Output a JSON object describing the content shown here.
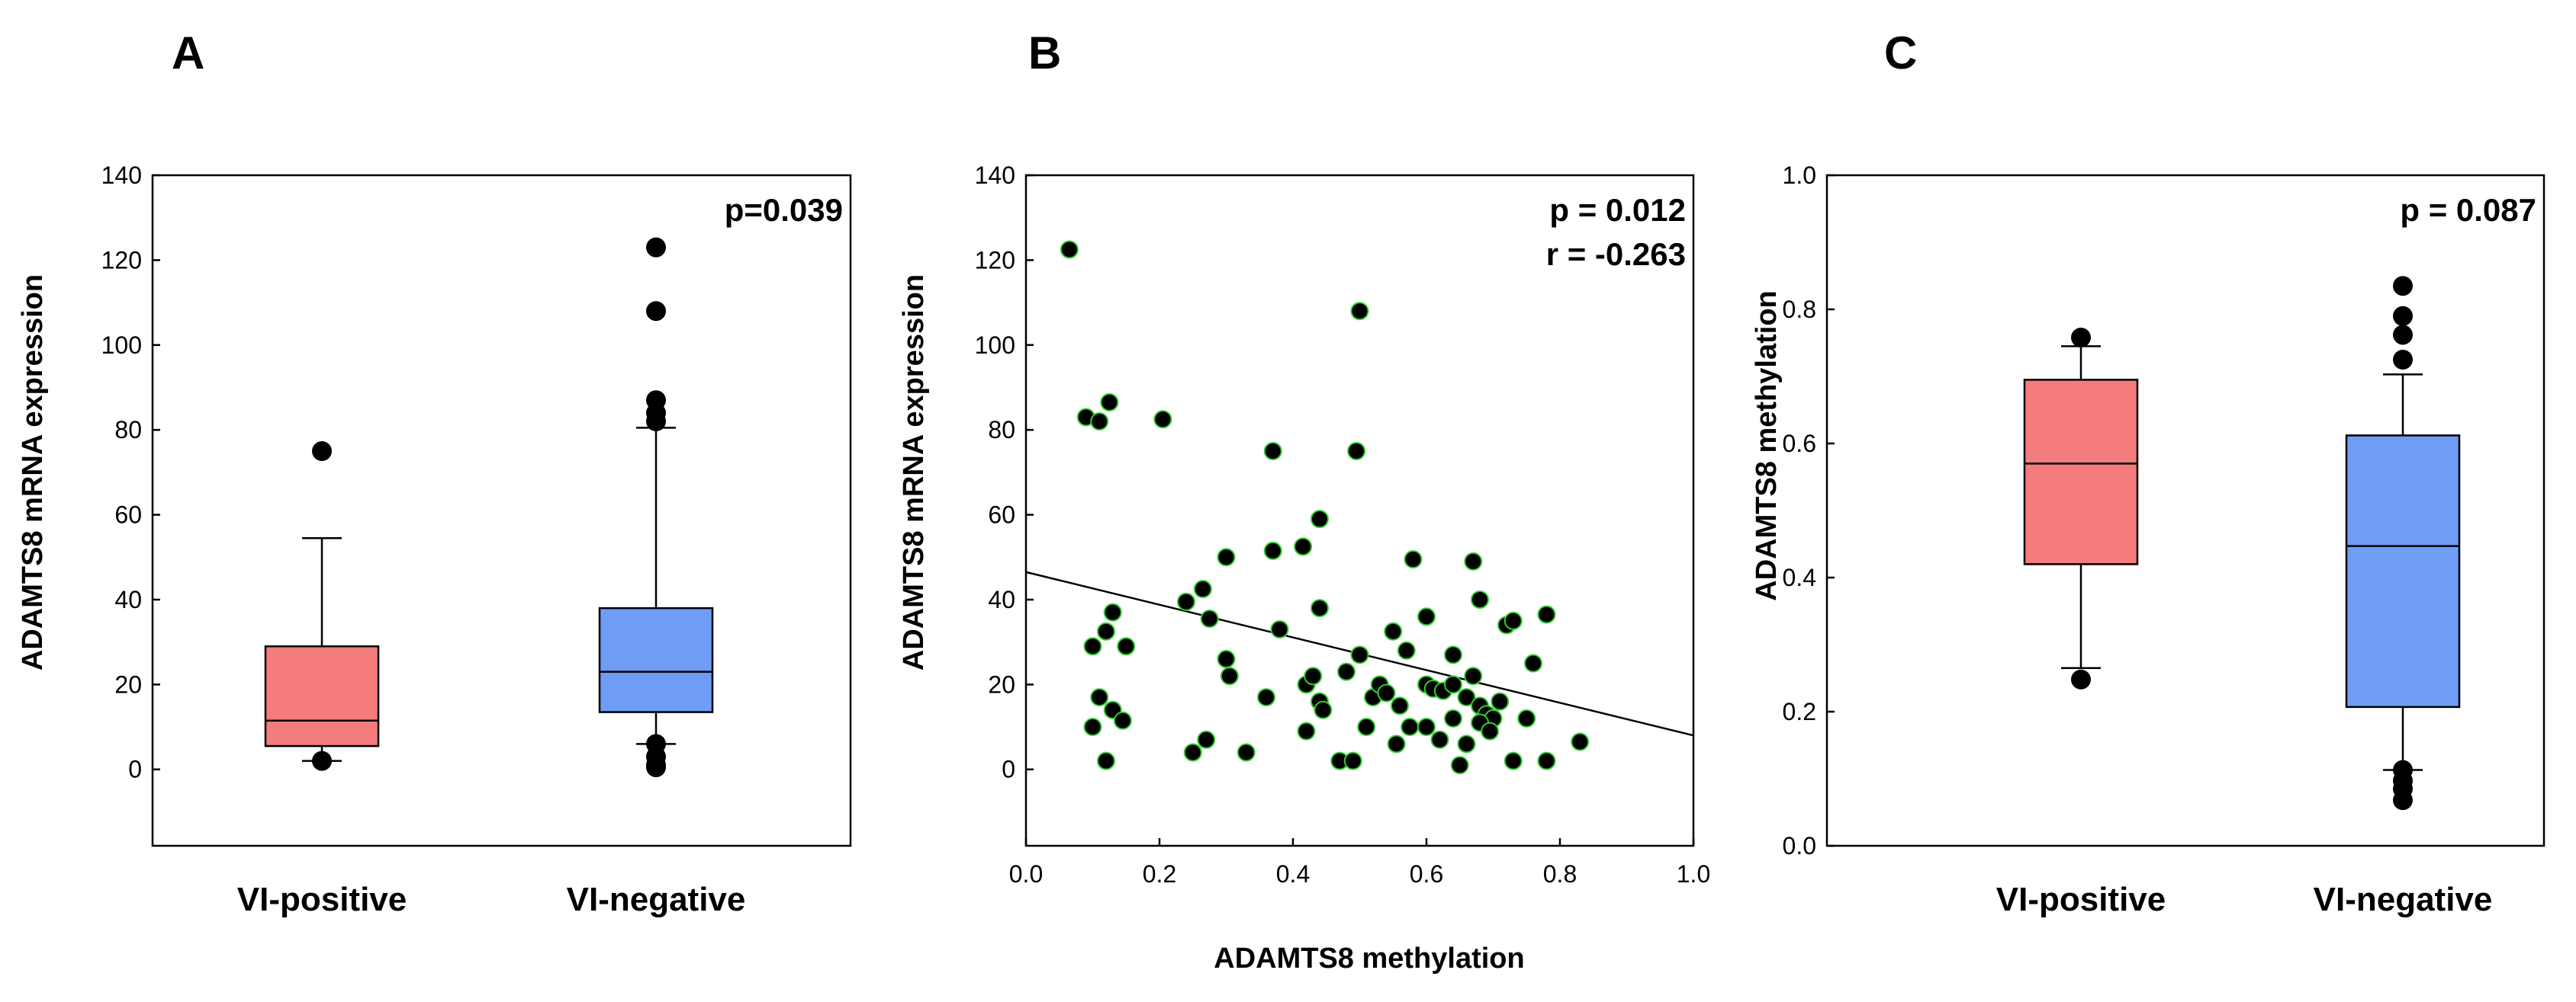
{
  "chart_data": [
    {
      "panel": "A",
      "type": "box",
      "title": "",
      "xlabel": "",
      "ylabel": "ADAMTS8 mRNA expression",
      "ylim": [
        -18,
        140
      ],
      "yticks": [
        0,
        20,
        40,
        60,
        80,
        100,
        120,
        140
      ],
      "categories": [
        "VI-positive",
        "VI-negative"
      ],
      "annotation": "p=0.039",
      "boxes": [
        {
          "name": "VI-positive",
          "color": "#f47c7c",
          "q1": 5.5,
          "median": 11.5,
          "q3": 29,
          "whisker_low": 2,
          "whisker_high": 54.5,
          "outliers": [
            75,
            2
          ]
        },
        {
          "name": "VI-negative",
          "color": "#6f9cf5",
          "q1": 13.5,
          "median": 23,
          "q3": 38,
          "whisker_low": 6,
          "whisker_high": 80.5,
          "outliers": [
            123,
            108,
            87,
            84,
            82,
            6,
            3,
            1,
            0.5
          ]
        }
      ]
    },
    {
      "panel": "B",
      "type": "scatter",
      "title": "",
      "xlabel": "ADAMTS8 methylation",
      "ylabel": "ADAMTS8 mRNA expression",
      "xlim": [
        0.0,
        1.0
      ],
      "ylim": [
        -18,
        140
      ],
      "xticks": [
        0.0,
        0.2,
        0.4,
        0.6,
        0.8,
        1.0
      ],
      "xtick_labels": [
        "0.0",
        "0.2",
        "0.4",
        "0.6",
        "0.8",
        "1.0"
      ],
      "yticks": [
        0,
        20,
        40,
        60,
        80,
        100,
        120,
        140
      ],
      "annotations": [
        "p = 0.012",
        "r = -0.263"
      ],
      "regression": {
        "x": [
          0.0,
          1.0
        ],
        "y": [
          46.5,
          8
        ]
      },
      "points": [
        [
          0.065,
          122.5
        ],
        [
          0.09,
          83
        ],
        [
          0.11,
          82
        ],
        [
          0.125,
          86.5
        ],
        [
          0.205,
          82.5
        ],
        [
          0.5,
          108
        ],
        [
          0.37,
          75
        ],
        [
          0.495,
          75
        ],
        [
          0.44,
          59
        ],
        [
          0.415,
          52.5
        ],
        [
          0.37,
          51.5
        ],
        [
          0.3,
          50
        ],
        [
          0.58,
          49.5
        ],
        [
          0.67,
          49
        ],
        [
          0.24,
          39.5
        ],
        [
          0.265,
          42.5
        ],
        [
          0.275,
          35.5
        ],
        [
          0.38,
          33
        ],
        [
          0.44,
          38
        ],
        [
          0.6,
          36
        ],
        [
          0.68,
          40
        ],
        [
          0.55,
          32.5
        ],
        [
          0.64,
          27
        ],
        [
          0.72,
          34
        ],
        [
          0.78,
          36.5
        ],
        [
          0.73,
          35
        ],
        [
          0.76,
          25
        ],
        [
          0.13,
          37
        ],
        [
          0.12,
          32.5
        ],
        [
          0.1,
          29
        ],
        [
          0.15,
          29
        ],
        [
          0.3,
          26
        ],
        [
          0.305,
          22
        ],
        [
          0.42,
          20
        ],
        [
          0.43,
          22
        ],
        [
          0.44,
          16
        ],
        [
          0.48,
          23
        ],
        [
          0.5,
          27
        ],
        [
          0.52,
          17
        ],
        [
          0.53,
          20
        ],
        [
          0.54,
          18
        ],
        [
          0.57,
          28
        ],
        [
          0.6,
          20
        ],
        [
          0.61,
          19
        ],
        [
          0.625,
          18.5
        ],
        [
          0.64,
          20
        ],
        [
          0.66,
          17
        ],
        [
          0.67,
          22
        ],
        [
          0.68,
          15
        ],
        [
          0.69,
          13
        ],
        [
          0.7,
          12
        ],
        [
          0.71,
          16
        ],
        [
          0.75,
          12
        ],
        [
          0.11,
          17
        ],
        [
          0.13,
          14
        ],
        [
          0.145,
          11.5
        ],
        [
          0.1,
          10
        ],
        [
          0.36,
          17
        ],
        [
          0.42,
          9
        ],
        [
          0.445,
          14
        ],
        [
          0.51,
          10
        ],
        [
          0.56,
          15
        ],
        [
          0.575,
          10
        ],
        [
          0.6,
          10
        ],
        [
          0.62,
          7
        ],
        [
          0.64,
          12
        ],
        [
          0.66,
          6
        ],
        [
          0.68,
          11
        ],
        [
          0.695,
          9
        ],
        [
          0.83,
          6.5
        ],
        [
          0.12,
          2
        ],
        [
          0.25,
          4
        ],
        [
          0.27,
          7
        ],
        [
          0.33,
          4
        ],
        [
          0.47,
          2
        ],
        [
          0.49,
          2
        ],
        [
          0.65,
          1
        ],
        [
          0.73,
          2
        ],
        [
          0.78,
          2
        ],
        [
          0.555,
          6
        ]
      ]
    },
    {
      "panel": "C",
      "type": "box",
      "title": "",
      "xlabel": "",
      "ylabel": "ADAMTS8 methylation",
      "ylim": [
        0.0,
        1.0
      ],
      "yticks": [
        0.0,
        0.2,
        0.4,
        0.6,
        0.8,
        1.0
      ],
      "ytick_labels": [
        "0.0",
        "0.2",
        "0.4",
        "0.6",
        "0.8",
        "1.0"
      ],
      "categories": [
        "VI-positive",
        "VI-negative"
      ],
      "annotation": "p = 0.087",
      "boxes": [
        {
          "name": "VI-positive",
          "color": "#f47c7c",
          "q1": 0.42,
          "median": 0.57,
          "q3": 0.695,
          "whisker_low": 0.265,
          "whisker_high": 0.745,
          "outliers": [
            0.758,
            0.248
          ]
        },
        {
          "name": "VI-negative",
          "color": "#6f9cf5",
          "q1": 0.207,
          "median": 0.447,
          "q3": 0.612,
          "whisker_low": 0.113,
          "whisker_high": 0.703,
          "outliers": [
            0.835,
            0.79,
            0.762,
            0.725,
            0.113,
            0.097,
            0.085,
            0.068
          ]
        }
      ]
    }
  ],
  "panel_labels": [
    "A",
    "B",
    "C"
  ]
}
